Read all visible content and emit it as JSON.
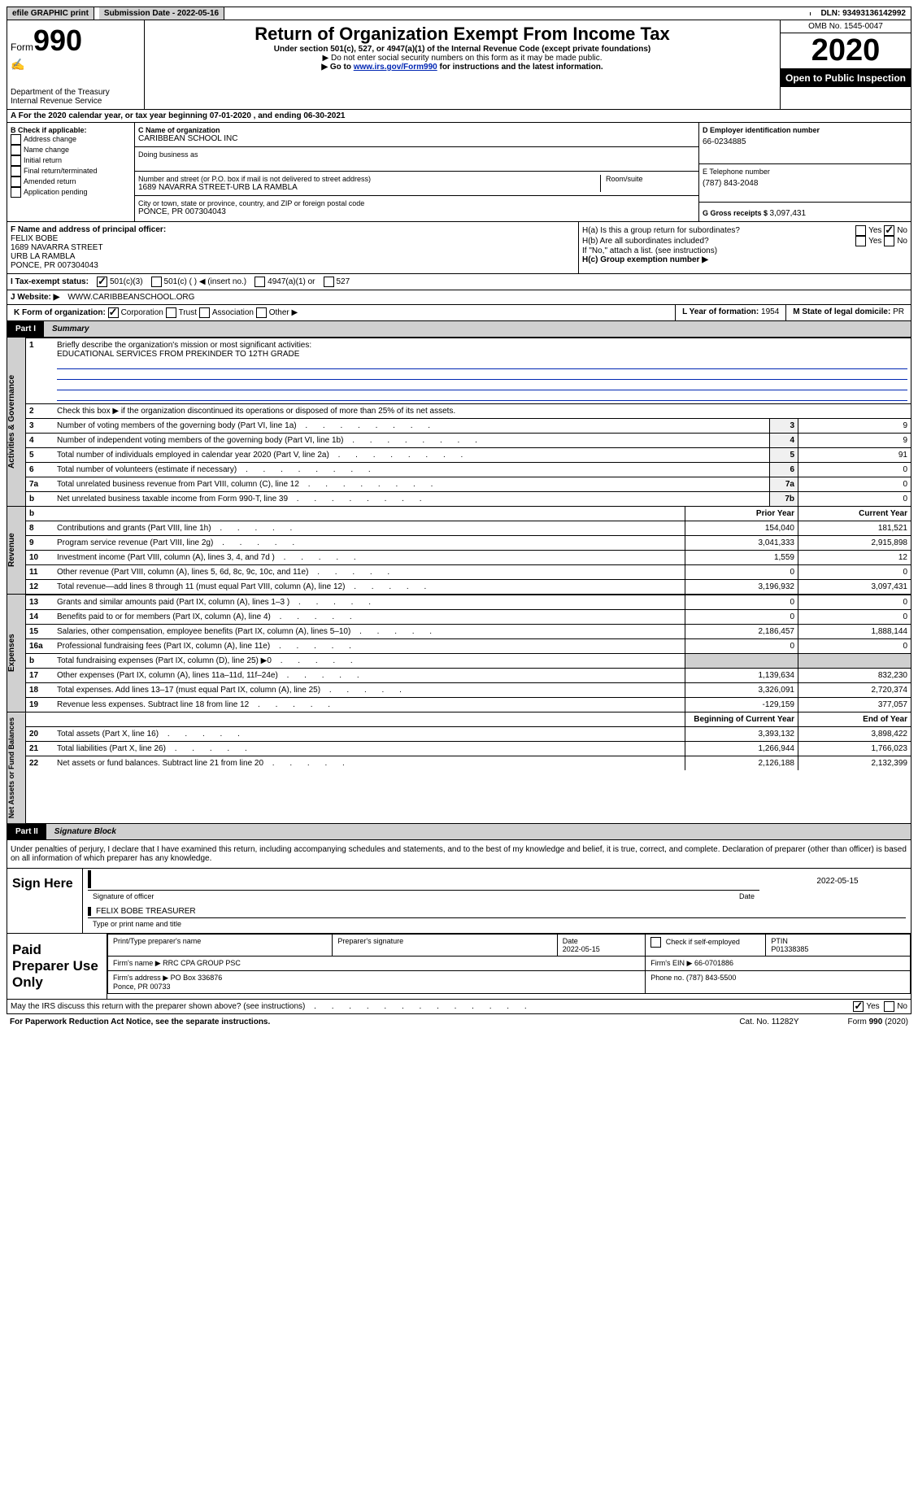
{
  "topbar": {
    "efile": "efile GRAPHIC print",
    "subdate_label": "Submission Date - ",
    "subdate": "2022-05-16",
    "dln_label": "DLN: ",
    "dln": "93493136142992"
  },
  "header": {
    "form_word": "Form",
    "form_num": "990",
    "dept": "Department of the Treasury\nInternal Revenue Service",
    "title": "Return of Organization Exempt From Income Tax",
    "subtitle": "Under section 501(c), 527, or 4947(a)(1) of the Internal Revenue Code (except private foundations)",
    "note1": "▶ Do not enter social security numbers on this form as it may be made public.",
    "note2_a": "▶ Go to ",
    "note2_link": "www.irs.gov/Form990",
    "note2_b": " for instructions and the latest information.",
    "omb": "OMB No. 1545-0047",
    "year": "2020",
    "inspect": "Open to Public Inspection"
  },
  "rowA": {
    "text_a": "A For the 2020 calendar year, or tax year beginning ",
    "begin": "07-01-2020",
    "mid": " , and ending ",
    "end": "06-30-2021"
  },
  "B": {
    "label": "B Check if applicable:",
    "items": [
      "Address change",
      "Name change",
      "Initial return",
      "Final return/terminated",
      "Amended return",
      "Application pending"
    ]
  },
  "C": {
    "name_label": "C Name of organization",
    "name": "CARIBBEAN SCHOOL INC",
    "dba_label": "Doing business as",
    "addr_label": "Number and street (or P.O. box if mail is not delivered to street address)",
    "room_label": "Room/suite",
    "addr": "1689 NAVARRA STREET-URB LA RAMBLA",
    "city_label": "City or town, state or province, country, and ZIP or foreign postal code",
    "city": "PONCE, PR  007304043"
  },
  "D": {
    "label": "D Employer identification number",
    "val": "66-0234885"
  },
  "E": {
    "label": "E Telephone number",
    "val": "(787) 843-2048"
  },
  "G": {
    "label": "G Gross receipts $ ",
    "val": "3,097,431"
  },
  "F": {
    "label": "F  Name and address of principal officer:",
    "lines": [
      "FELIX BOBE",
      "1689 NAVARRA STREET",
      "URB LA RAMBLA",
      "PONCE, PR  007304043"
    ]
  },
  "H": {
    "a": "H(a)  Is this a group return for subordinates?",
    "b": "H(b)  Are all subordinates included?",
    "note": "If \"No,\" attach a list. (see instructions)",
    "c": "H(c)  Group exemption number ▶",
    "yes": "Yes",
    "no": "No"
  },
  "I": {
    "label": "I   Tax-exempt status:",
    "opts": [
      "501(c)(3)",
      "501(c) (  ) ◀ (insert no.)",
      "4947(a)(1) or",
      "527"
    ]
  },
  "J": {
    "label": "J   Website: ▶",
    "val": "WWW.CARIBBEANSCHOOL.ORG"
  },
  "K": {
    "label": "K Form of organization:",
    "opts": [
      "Corporation",
      "Trust",
      "Association",
      "Other ▶"
    ]
  },
  "L": {
    "label": "L Year of formation: ",
    "val": "1954"
  },
  "M": {
    "label": "M State of legal domicile: ",
    "val": "PR"
  },
  "part1": {
    "label": "Part I",
    "title": "Summary"
  },
  "summary": {
    "q1": "Briefly describe the organization's mission or most significant activities:",
    "q1_ans": "EDUCATIONAL SERVICES FROM PREKINDER TO 12TH GRADE",
    "q2": "Check this box ▶  if the organization discontinued its operations or disposed of more than 25% of its net assets.",
    "rows_simple": [
      {
        "n": "3",
        "t": "Number of voting members of the governing body (Part VI, line 1a)",
        "box": "3",
        "v": "9"
      },
      {
        "n": "4",
        "t": "Number of independent voting members of the governing body (Part VI, line 1b)",
        "box": "4",
        "v": "9"
      },
      {
        "n": "5",
        "t": "Total number of individuals employed in calendar year 2020 (Part V, line 2a)",
        "box": "5",
        "v": "91"
      },
      {
        "n": "6",
        "t": "Total number of volunteers (estimate if necessary)",
        "box": "6",
        "v": "0"
      },
      {
        "n": "7a",
        "t": "Total unrelated business revenue from Part VIII, column (C), line 12",
        "box": "7a",
        "v": "0"
      },
      {
        "n": "b",
        "t": "Net unrelated business taxable income from Form 990-T, line 39",
        "box": "7b",
        "v": "0"
      }
    ],
    "head_prior": "Prior Year",
    "head_curr": "Current Year",
    "rev": [
      {
        "n": "8",
        "t": "Contributions and grants (Part VIII, line 1h)",
        "p": "154,040",
        "c": "181,521"
      },
      {
        "n": "9",
        "t": "Program service revenue (Part VIII, line 2g)",
        "p": "3,041,333",
        "c": "2,915,898"
      },
      {
        "n": "10",
        "t": "Investment income (Part VIII, column (A), lines 3, 4, and 7d )",
        "p": "1,559",
        "c": "12"
      },
      {
        "n": "11",
        "t": "Other revenue (Part VIII, column (A), lines 5, 6d, 8c, 9c, 10c, and 11e)",
        "p": "0",
        "c": "0"
      },
      {
        "n": "12",
        "t": "Total revenue—add lines 8 through 11 (must equal Part VIII, column (A), line 12)",
        "p": "3,196,932",
        "c": "3,097,431"
      }
    ],
    "exp": [
      {
        "n": "13",
        "t": "Grants and similar amounts paid (Part IX, column (A), lines 1–3 )",
        "p": "0",
        "c": "0"
      },
      {
        "n": "14",
        "t": "Benefits paid to or for members (Part IX, column (A), line 4)",
        "p": "0",
        "c": "0"
      },
      {
        "n": "15",
        "t": "Salaries, other compensation, employee benefits (Part IX, column (A), lines 5–10)",
        "p": "2,186,457",
        "c": "1,888,144"
      },
      {
        "n": "16a",
        "t": "Professional fundraising fees (Part IX, column (A), line 11e)",
        "p": "0",
        "c": "0"
      },
      {
        "n": "b",
        "t": "Total fundraising expenses (Part IX, column (D), line 25) ▶0",
        "p": "",
        "c": "",
        "shade": true
      },
      {
        "n": "17",
        "t": "Other expenses (Part IX, column (A), lines 11a–11d, 11f–24e)",
        "p": "1,139,634",
        "c": "832,230"
      },
      {
        "n": "18",
        "t": "Total expenses. Add lines 13–17 (must equal Part IX, column (A), line 25)",
        "p": "3,326,091",
        "c": "2,720,374"
      },
      {
        "n": "19",
        "t": "Revenue less expenses. Subtract line 18 from line 12",
        "p": "-129,159",
        "c": "377,057"
      }
    ],
    "head_begin": "Beginning of Current Year",
    "head_end": "End of Year",
    "net": [
      {
        "n": "20",
        "t": "Total assets (Part X, line 16)",
        "p": "3,393,132",
        "c": "3,898,422"
      },
      {
        "n": "21",
        "t": "Total liabilities (Part X, line 26)",
        "p": "1,266,944",
        "c": "1,766,023"
      },
      {
        "n": "22",
        "t": "Net assets or fund balances. Subtract line 21 from line 20",
        "p": "2,126,188",
        "c": "2,132,399"
      }
    ],
    "side1": "Activities & Governance",
    "side2": "Revenue",
    "side3": "Expenses",
    "side4": "Net Assets or Fund Balances"
  },
  "part2": {
    "label": "Part II",
    "title": "Signature Block"
  },
  "penalties": "Under penalties of perjury, I declare that I have examined this return, including accompanying schedules and statements, and to the best of my knowledge and belief, it is true, correct, and complete. Declaration of preparer (other than officer) is based on all information of which preparer has any knowledge.",
  "sign": {
    "here": "Sign Here",
    "sigoff": "Signature of officer",
    "date": "Date",
    "dateval": "2022-05-15",
    "name": "FELIX BOBE  TREASURER",
    "typelabel": "Type or print name and title"
  },
  "prep": {
    "label": "Paid Preparer Use Only",
    "h1": "Print/Type preparer's name",
    "h2": "Preparer's signature",
    "h3_a": "Date",
    "h3_v": "2022-05-15",
    "h4": "Check      if self-employed",
    "h5_a": "PTIN",
    "h5_v": "P01338385",
    "firm_label": "Firm's name   ▶",
    "firm": "RRC CPA GROUP PSC",
    "ein_label": "Firm's EIN ▶",
    "ein": "66-0701886",
    "addr_label": "Firm's address ▶",
    "addr": "PO Box 336876\nPonce, PR  00733",
    "phone_label": "Phone no.",
    "phone": "(787) 843-5500"
  },
  "discuss": {
    "q": "May the IRS discuss this return with the preparer shown above? (see instructions)",
    "yes": "Yes",
    "no": "No"
  },
  "footer": {
    "a": "For Paperwork Reduction Act Notice, see the separate instructions.",
    "b": "Cat. No. 11282Y",
    "c": "Form 990 (2020)"
  }
}
